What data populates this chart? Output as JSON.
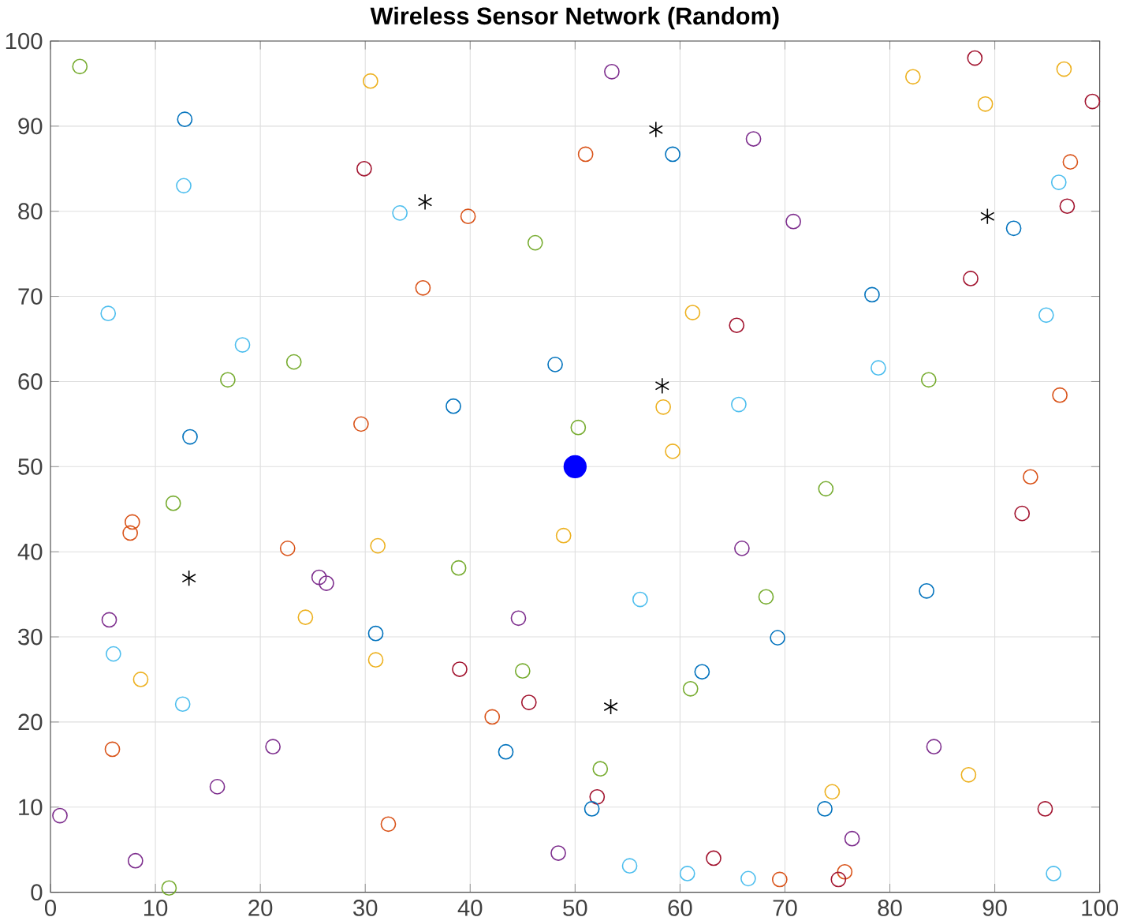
{
  "chart_data": {
    "type": "scatter",
    "title": "Wireless Sensor Network (Random)",
    "xlim": [
      0,
      100
    ],
    "ylim": [
      0,
      100
    ],
    "xticks": [
      0,
      10,
      20,
      30,
      40,
      50,
      60,
      70,
      80,
      90,
      100
    ],
    "yticks": [
      0,
      10,
      20,
      30,
      40,
      50,
      60,
      70,
      80,
      90,
      100
    ],
    "grid": true,
    "series": [
      {
        "marker": "circle",
        "x": [
          2.8,
          12.8,
          12.7,
          30.5,
          29.9,
          33.3,
          39.8,
          53.5,
          51,
          59.3,
          67,
          70.8,
          82.2,
          88.1,
          89.1,
          96.6,
          99.3,
          97.2,
          96.1,
          96.9,
          91.8,
          5.5,
          18.3,
          16.9,
          23.2,
          13.3,
          35.5,
          46.2,
          48.1,
          38.4,
          29.6,
          50.3,
          58.4,
          59.3,
          61.2,
          65.4,
          65.6,
          78.3,
          78.9,
          83.7,
          94.9,
          96.2,
          87.7,
          7.8,
          7.6,
          11.7,
          22.6,
          25.6,
          26.3,
          24.3,
          5.6,
          6,
          8.6,
          12.6,
          5.9,
          21.2,
          15.9,
          0.9,
          8.1,
          11.3,
          31.2,
          31,
          31,
          32.2,
          38.9,
          44.6,
          39,
          45,
          45.6,
          42.1,
          43.4,
          48.9,
          56.2,
          62.1,
          61,
          52.4,
          52.1,
          51.6,
          48.4,
          55.2,
          60.7,
          63.2,
          66.5,
          65.9,
          68.2,
          69.3,
          73.9,
          83.5,
          84.2,
          87.5,
          92.6,
          93.4,
          74.5,
          73.8,
          76.4,
          75.7,
          75.1,
          69.5,
          94.8,
          95.6
        ],
        "values": [
          97,
          90.8,
          83,
          95.3,
          85,
          79.8,
          79.4,
          96.4,
          86.7,
          86.7,
          88.5,
          78.8,
          95.8,
          98,
          92.6,
          96.7,
          92.9,
          85.8,
          83.4,
          80.6,
          78,
          68,
          64.3,
          60.2,
          62.3,
          53.5,
          71,
          76.3,
          62,
          57.1,
          55,
          54.6,
          57,
          51.8,
          68.1,
          66.6,
          57.3,
          70.2,
          61.6,
          60.2,
          67.8,
          58.4,
          72.1,
          43.5,
          42.2,
          45.7,
          40.4,
          37,
          36.3,
          32.3,
          32,
          28,
          25,
          22.1,
          16.8,
          17.1,
          12.4,
          9,
          3.7,
          0.5,
          40.7,
          30.4,
          27.3,
          8,
          38.1,
          32.2,
          26.2,
          26,
          22.3,
          20.6,
          16.5,
          41.9,
          34.4,
          25.9,
          23.9,
          14.5,
          11.2,
          9.8,
          4.6,
          3.1,
          2.2,
          4,
          1.6,
          40.4,
          34.7,
          29.9,
          47.4,
          35.4,
          17.1,
          13.8,
          44.5,
          48.8,
          11.8,
          9.8,
          6.3,
          2.4,
          1.5,
          1.5,
          9.8,
          2.2
        ],
        "colors": [
          "#77ac30",
          "#0072bd",
          "#4dbeee",
          "#edb120",
          "#a2142f",
          "#4dbeee",
          "#d95319",
          "#7e2f8e",
          "#d95319",
          "#0072bd",
          "#7e2f8e",
          "#7e2f8e",
          "#edb120",
          "#a2142f",
          "#edb120",
          "#edb120",
          "#a2142f",
          "#d95319",
          "#4dbeee",
          "#a2142f",
          "#0072bd",
          "#4dbeee",
          "#4dbeee",
          "#77ac30",
          "#77ac30",
          "#0072bd",
          "#d95319",
          "#77ac30",
          "#0072bd",
          "#0072bd",
          "#d95319",
          "#77ac30",
          "#edb120",
          "#edb120",
          "#edb120",
          "#a2142f",
          "#4dbeee",
          "#0072bd",
          "#4dbeee",
          "#77ac30",
          "#4dbeee",
          "#d95319",
          "#a2142f",
          "#d95319",
          "#d95319",
          "#77ac30",
          "#d95319",
          "#7e2f8e",
          "#7e2f8e",
          "#edb120",
          "#7e2f8e",
          "#4dbeee",
          "#edb120",
          "#4dbeee",
          "#d95319",
          "#7e2f8e",
          "#7e2f8e",
          "#7e2f8e",
          "#7e2f8e",
          "#77ac30",
          "#edb120",
          "#0072bd",
          "#edb120",
          "#d95319",
          "#77ac30",
          "#7e2f8e",
          "#a2142f",
          "#77ac30",
          "#a2142f",
          "#d95319",
          "#0072bd",
          "#edb120",
          "#4dbeee",
          "#0072bd",
          "#77ac30",
          "#77ac30",
          "#a2142f",
          "#0072bd",
          "#7e2f8e",
          "#4dbeee",
          "#4dbeee",
          "#a2142f",
          "#4dbeee",
          "#7e2f8e",
          "#77ac30",
          "#0072bd",
          "#77ac30",
          "#0072bd",
          "#7e2f8e",
          "#edb120",
          "#a2142f",
          "#d95319",
          "#edb120",
          "#0072bd",
          "#7e2f8e",
          "#d95319",
          "#a2142f",
          "#d95319",
          "#a2142f",
          "#4dbeee"
        ]
      },
      {
        "marker": "cross",
        "color": "#000000",
        "x": [
          35.7,
          57.7,
          58.3,
          89.3,
          13.2,
          53.4
        ],
        "values": [
          81.1,
          89.6,
          59.5,
          79.4,
          36.9,
          21.8
        ]
      },
      {
        "marker": "circle",
        "color": "#0000ff",
        "x": [
          50
        ],
        "values": [
          50
        ]
      }
    ]
  }
}
